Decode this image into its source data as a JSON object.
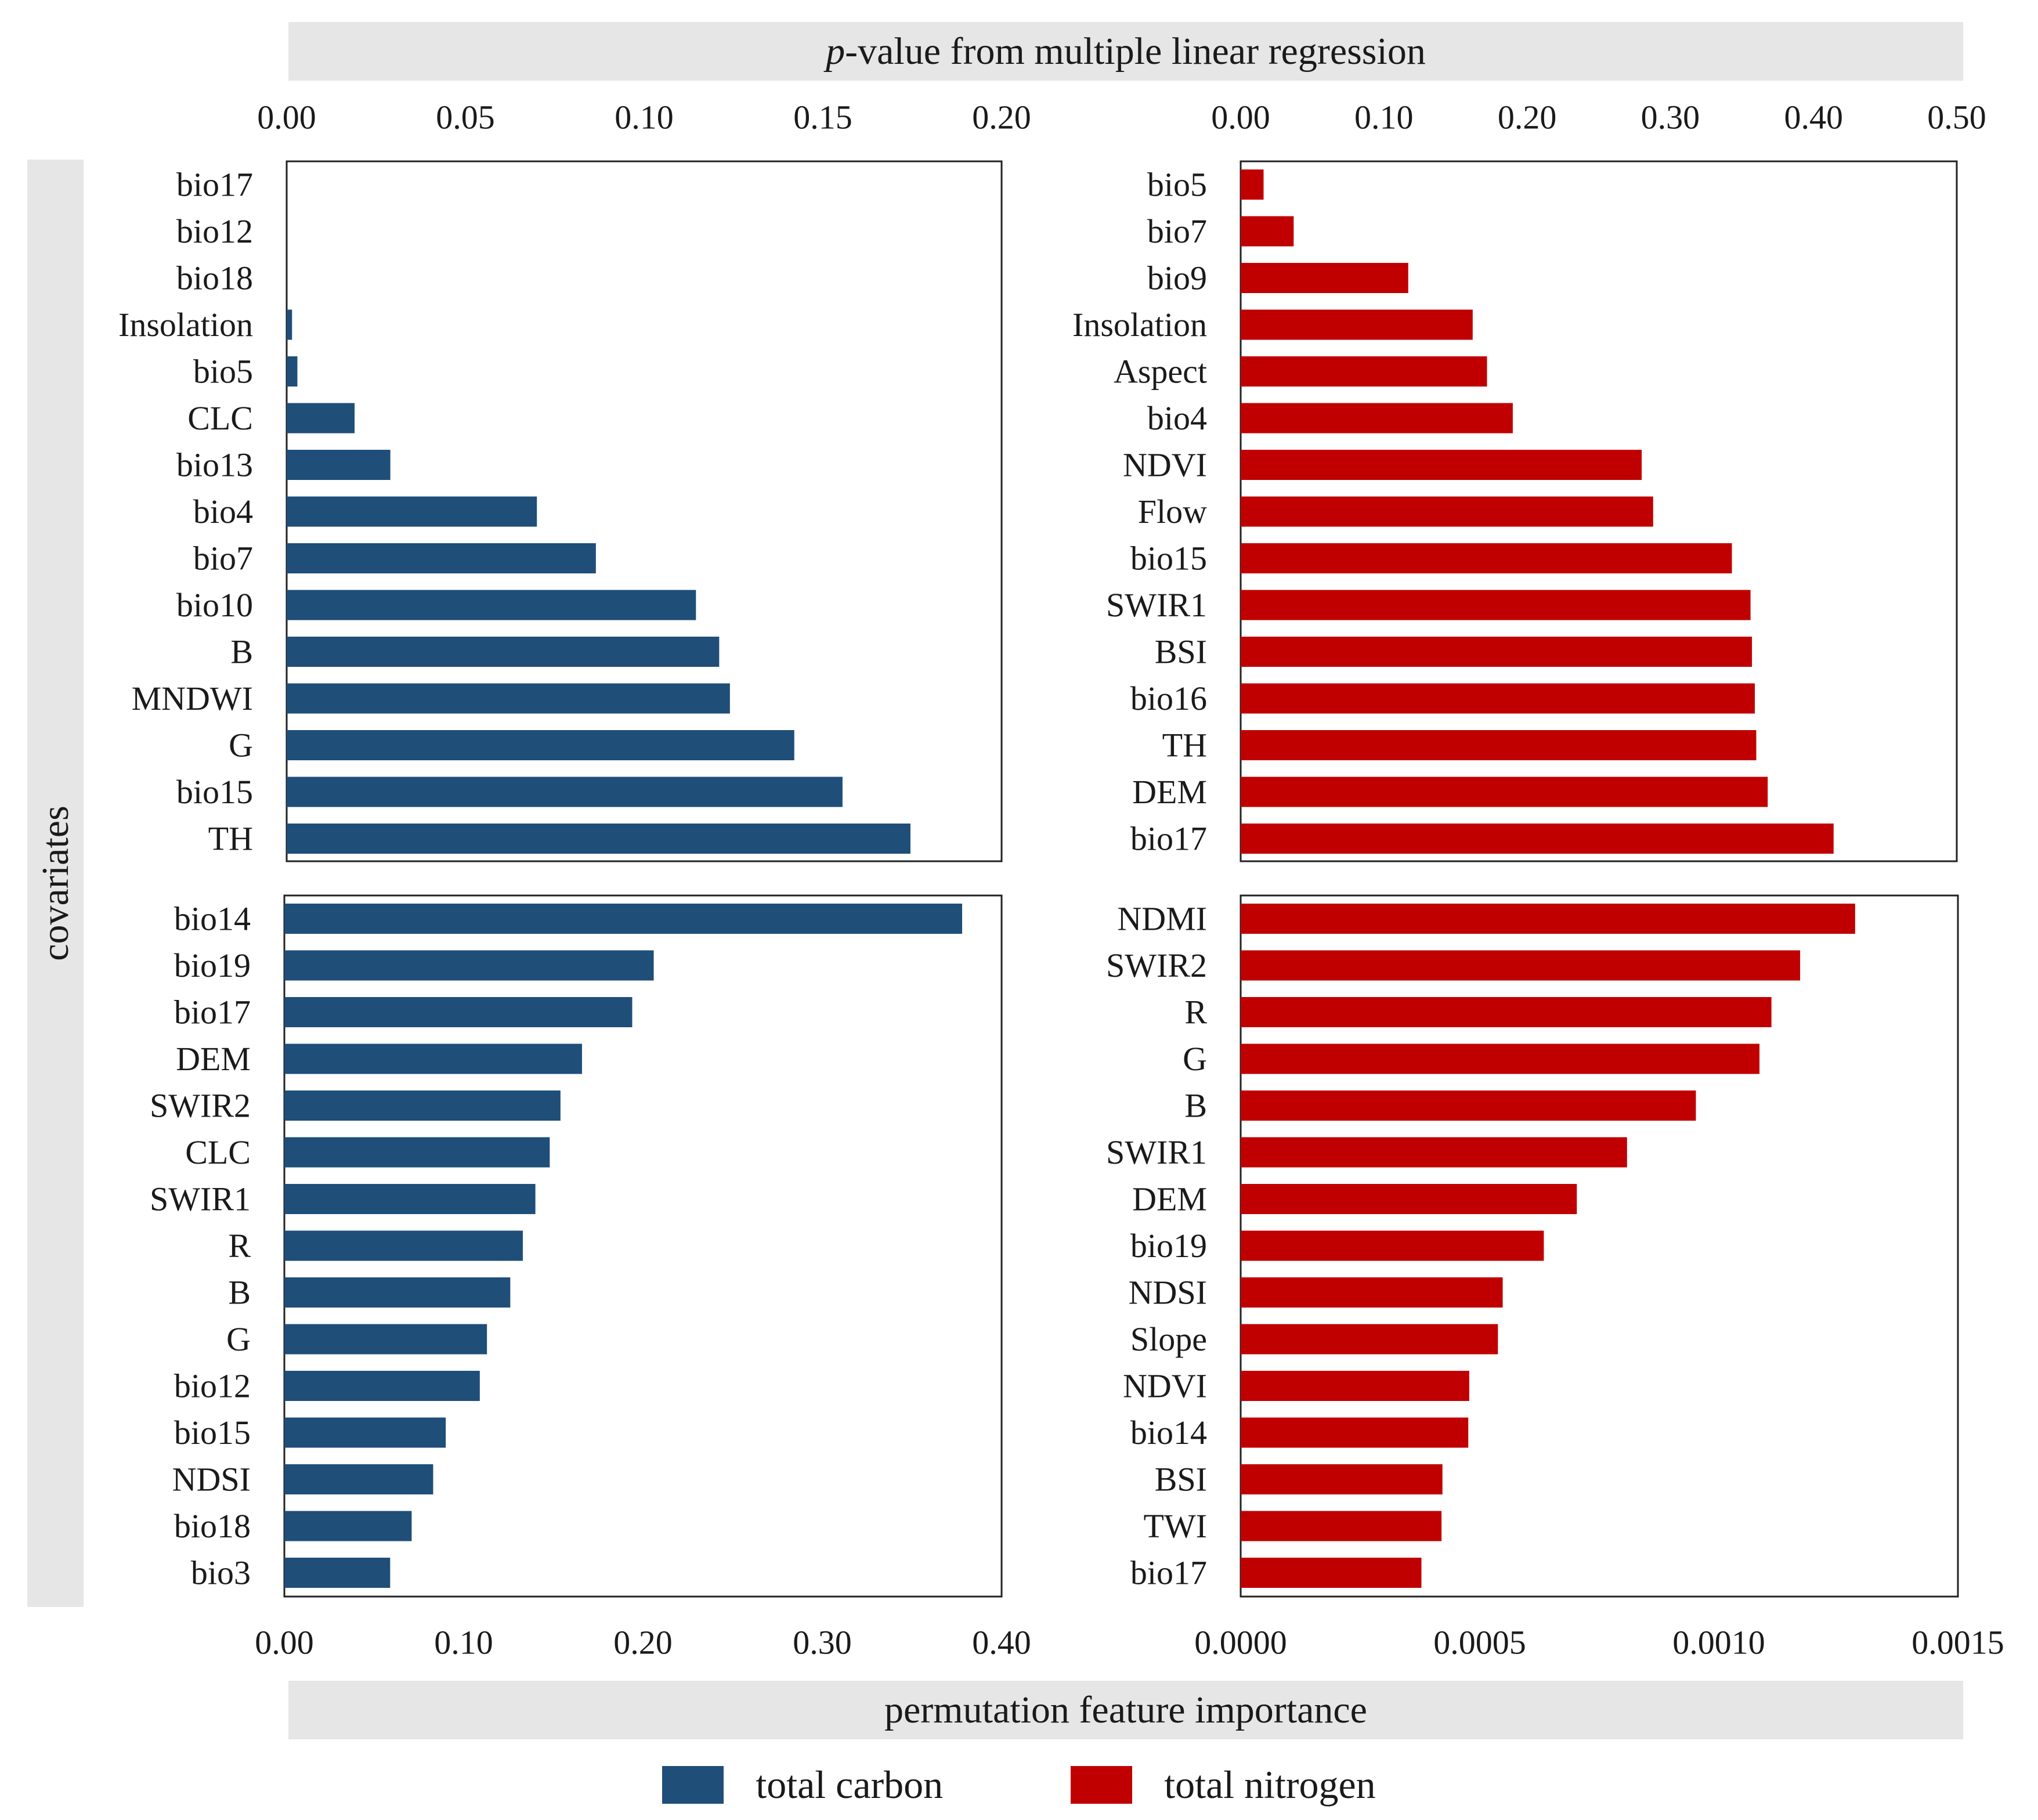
{
  "strips": {
    "top_italic": "p",
    "top_rest": "-value from multiple linear regression",
    "bottom": "permutation feature importance",
    "left": "covariates"
  },
  "colors": {
    "total_carbon": "#1f4e79",
    "total_nitrogen": "#c00000",
    "strip": "#e6e6e6"
  },
  "legend": {
    "total_carbon": "total carbon",
    "total_nitrogen": "total nitrogen"
  },
  "chart_data": [
    {
      "type": "bar",
      "orientation": "horizontal",
      "panel": "top-left",
      "series": "total carbon",
      "xlim": [
        0,
        0.2
      ],
      "xticks": [
        "0.00",
        "0.05",
        "0.10",
        "0.15",
        "0.20"
      ],
      "categories": [
        "bio17",
        "bio12",
        "bio18",
        "Insolation",
        "bio5",
        "CLC",
        "bio13",
        "bio4",
        "bio7",
        "bio10",
        "B",
        "MNDWI",
        "G",
        "bio15",
        "TH"
      ],
      "values": [
        0.0,
        0.0,
        0.0,
        0.0015,
        0.003,
        0.019,
        0.029,
        0.07,
        0.0865,
        0.1145,
        0.121,
        0.124,
        0.142,
        0.1555,
        0.1745
      ]
    },
    {
      "type": "bar",
      "orientation": "horizontal",
      "panel": "top-right",
      "series": "total nitrogen",
      "xlim": [
        0,
        0.5
      ],
      "xticks": [
        "0.00",
        "0.10",
        "0.20",
        "0.30",
        "0.40",
        "0.50"
      ],
      "categories": [
        "bio5",
        "bio7",
        "bio9",
        "Insolation",
        "Aspect",
        "bio4",
        "NDVI",
        "Flow",
        "bio15",
        "SWIR1",
        "BSI",
        "bio16",
        "TH",
        "DEM",
        "bio17"
      ],
      "values": [
        0.016,
        0.037,
        0.117,
        0.162,
        0.172,
        0.19,
        0.28,
        0.288,
        0.343,
        0.356,
        0.357,
        0.359,
        0.36,
        0.368,
        0.414
      ]
    },
    {
      "type": "bar",
      "orientation": "horizontal",
      "panel": "bottom-left",
      "series": "total carbon",
      "xlim": [
        0,
        0.4
      ],
      "xticks": [
        "0.00",
        "0.10",
        "0.20",
        "0.30",
        "0.40"
      ],
      "categories": [
        "bio14",
        "bio19",
        "bio17",
        "DEM",
        "SWIR2",
        "CLC",
        "SWIR1",
        "R",
        "B",
        "G",
        "bio12",
        "bio15",
        "NDSI",
        "bio18",
        "bio3"
      ],
      "values": [
        0.378,
        0.206,
        0.194,
        0.166,
        0.154,
        0.148,
        0.14,
        0.133,
        0.126,
        0.113,
        0.109,
        0.09,
        0.083,
        0.071,
        0.059
      ]
    },
    {
      "type": "bar",
      "orientation": "horizontal",
      "panel": "bottom-right",
      "series": "total nitrogen",
      "xlim": [
        0,
        0.0015
      ],
      "xticks": [
        "0.0000",
        "0.0005",
        "0.0010",
        "0.0015"
      ],
      "categories": [
        "NDMI",
        "SWIR2",
        "R",
        "G",
        "B",
        "SWIR1",
        "DEM",
        "bio19",
        "NDSI",
        "Slope",
        "NDVI",
        "bio14",
        "BSI",
        "TWI",
        "bio17"
      ],
      "values": [
        0.001285,
        0.00117,
        0.00111,
        0.001085,
        0.000952,
        0.000808,
        0.000703,
        0.000634,
        0.000548,
        0.000538,
        0.000478,
        0.000476,
        0.000422,
        0.00042,
        0.000378
      ]
    }
  ]
}
